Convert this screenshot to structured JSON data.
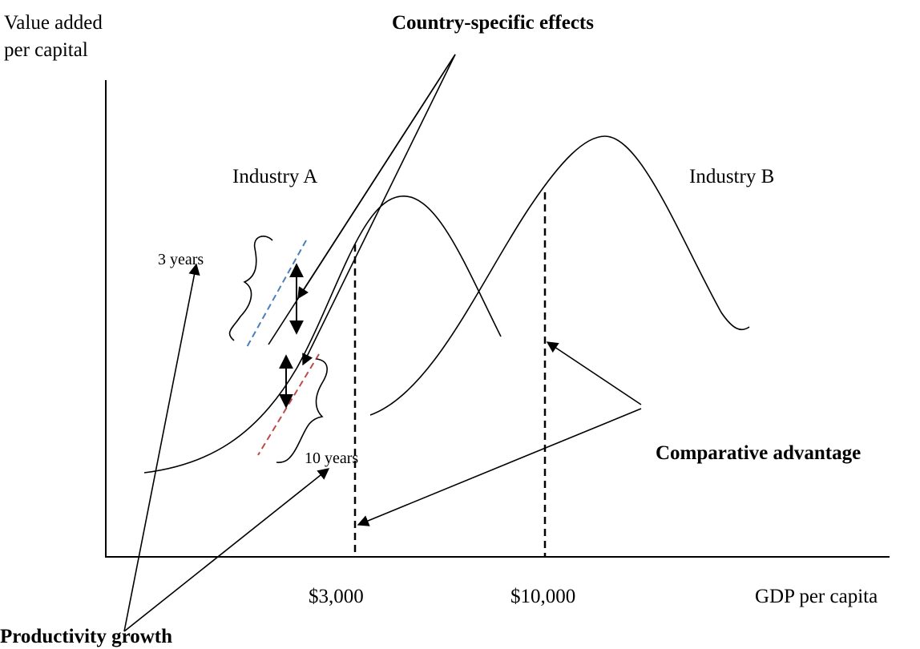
{
  "y_axis_label": [
    "Value added",
    "per capital"
  ],
  "x_axis_label": "GDP per capita",
  "annotations": {
    "country_effects": "Country-specific effects",
    "comparative_advantage": "Comparative advantage",
    "productivity_growth": "Productivity growth"
  },
  "industries": [
    "Industry A",
    "Industry B"
  ],
  "periods": [
    "3 years",
    "10 years"
  ],
  "x_markers": [
    "$3,000",
    "$10,000"
  ]
}
